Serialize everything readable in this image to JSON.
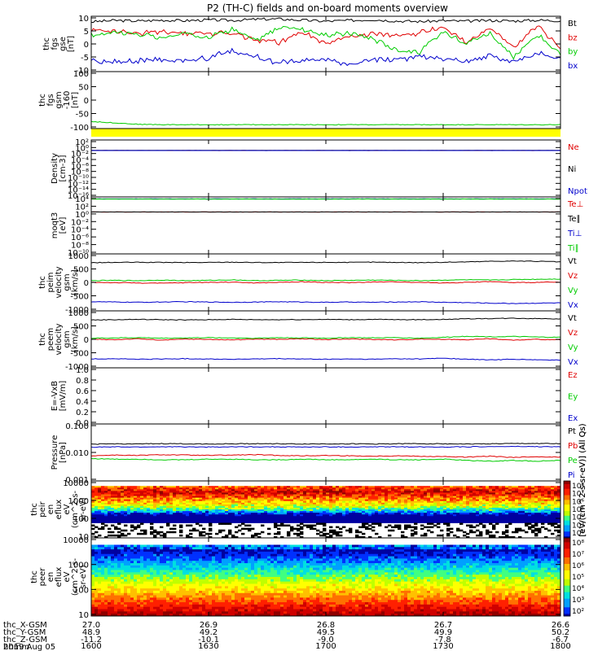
{
  "title": "P2 (TH-C) fields and on-board moments overview",
  "colors": {
    "black": "#000000",
    "red": "#e00000",
    "green": "#00cc00",
    "blue": "#0000cc",
    "yellow": "#ffff00"
  },
  "chart_data": [
    {
      "type": "line",
      "panel_label": [
        "thc",
        "fgs",
        "gse",
        "[nT]"
      ],
      "ylim": [
        -10,
        10
      ],
      "yticks": [
        "10",
        "5",
        "0",
        "-5",
        "-10"
      ],
      "series": [
        {
          "name": "Bt",
          "color": "black",
          "values": [
            8,
            8.5,
            8.3,
            8.6,
            8.4,
            8.7,
            8.5,
            8.9,
            9,
            8.6,
            8.2,
            8.5,
            8.8,
            8.3,
            8.1,
            8.4,
            8.2,
            8.5,
            8.3,
            8.6,
            8.4
          ]
        },
        {
          "name": "bz",
          "color": "red",
          "values": [
            5,
            4.8,
            3.5,
            4.6,
            4,
            3.8,
            4.2,
            1.5,
            0.5,
            4.5,
            0,
            2.5,
            3.5,
            3,
            4,
            6,
            1,
            5.5,
            -1,
            6.5,
            -2
          ]
        },
        {
          "name": "by",
          "color": "green",
          "values": [
            3,
            4.5,
            3.5,
            2,
            3.8,
            2.5,
            5.5,
            1,
            6,
            5.5,
            3,
            4,
            2,
            -2,
            -3,
            4.5,
            0.5,
            4,
            -5,
            3.5,
            -4
          ]
        },
        {
          "name": "bx",
          "color": "blue",
          "values": [
            -6,
            -6.5,
            -6,
            -5.8,
            -6.2,
            -5,
            -2.5,
            -4.5,
            -7,
            -6,
            -5.5,
            -7.5,
            -6,
            -5.5,
            -4.8,
            -5.2,
            -6.2,
            -4.5,
            -6.3,
            -3.5,
            -5
          ]
        }
      ]
    },
    {
      "type": "line",
      "panel_label": [
        "thc",
        "fgs",
        "gsm",
        "-160",
        "[nT]"
      ],
      "ylim": [
        -125,
        125
      ],
      "yticks": [
        "100",
        "50",
        "0",
        "-50",
        "-100"
      ],
      "series": [
        {
          "name": "",
          "color": "green",
          "values": [
            -94,
            -100,
            -106,
            -108,
            -108,
            -108,
            -108,
            -108,
            -108,
            -108,
            -108,
            -108,
            -108,
            -108,
            -108,
            -108,
            -108,
            -108,
            -108,
            -108,
            -108
          ]
        }
      ]
    },
    {
      "type": "line",
      "panel_label": [
        "Density",
        "[cm-3]"
      ],
      "scale": "log",
      "ylim": [
        -16,
        3
      ],
      "yticks": [
        "10²",
        "10⁰",
        "10⁻²",
        "10⁻⁴",
        "10⁻⁶",
        "10⁻⁸",
        "10⁻¹⁰",
        "10⁻¹²",
        "10⁻¹⁴",
        "10⁻¹⁶"
      ],
      "series": [
        {
          "name": "Ne",
          "color": "red",
          "values": [
            0.3,
            0.3,
            0.3,
            0.3,
            0.3,
            0.3,
            0.3,
            0.3,
            0.3,
            0.3,
            0.3,
            0.3,
            0.3,
            0.3,
            0.3,
            0.3,
            0.3,
            0.3,
            0.3,
            0.3,
            0.3
          ]
        },
        {
          "name": "Ni",
          "color": "black",
          "values": [
            0.35,
            0.35,
            0.35,
            0.35,
            0.35,
            0.35,
            0.35,
            0.35,
            0.35,
            0.35,
            0.35,
            0.35,
            0.35,
            0.35,
            0.35,
            0.35,
            0.35,
            0.35,
            0.35,
            0.35,
            0.35
          ]
        },
        {
          "name": "Npot",
          "color": "blue",
          "values": [
            0.3,
            0.3,
            0.3,
            0.3,
            0.3,
            0.3,
            0.3,
            0.3,
            0.3,
            0.3,
            0.3,
            0.3,
            0.3,
            0.3,
            0.3,
            0.3,
            0.3,
            0.3,
            0.3,
            0.3,
            0.3
          ]
        }
      ]
    },
    {
      "type": "line",
      "panel_label": [
        "moqt3",
        "[eV]"
      ],
      "scale": "log",
      "ylim": [
        -10,
        4
      ],
      "yticks": [
        "10⁴",
        "10²",
        "10⁰",
        "10⁻²",
        "10⁻⁴",
        "10⁻⁶",
        "10⁻⁸",
        "10⁻¹⁰"
      ],
      "series": [
        {
          "name": "Te⊥",
          "color": "red",
          "values": [
            2,
            2,
            2,
            2,
            2,
            2,
            2,
            2,
            2,
            2,
            2,
            2,
            2,
            2,
            2,
            2,
            2,
            2,
            2,
            2,
            2
          ]
        },
        {
          "name": "Te∥",
          "color": "black",
          "values": [
            2,
            2,
            2,
            2,
            2,
            2,
            2,
            2,
            2,
            2,
            2,
            2,
            2,
            2,
            2,
            2,
            2,
            2,
            2,
            2,
            2
          ]
        },
        {
          "name": "Ti⊥",
          "color": "blue",
          "values": [
            3300,
            3300,
            3300,
            3300,
            3300,
            3300,
            3300,
            3300,
            3300,
            3300,
            3300,
            3300,
            3300,
            3300,
            3300,
            3300,
            3300,
            3300,
            3300,
            3300,
            3300
          ]
        },
        {
          "name": "Ti∥",
          "color": "green",
          "values": [
            3000,
            3000,
            3000,
            3000,
            3000,
            3000,
            3000,
            3000,
            3000,
            3000,
            3000,
            3000,
            3000,
            3000,
            3000,
            3000,
            3000,
            3000,
            3000,
            3000,
            3000
          ]
        }
      ]
    },
    {
      "type": "line",
      "panel_label": [
        "thc",
        "peim",
        "velocity",
        "gsm",
        "[km/s]"
      ],
      "ylim": [
        -1000,
        1000
      ],
      "yticks": [
        "1000",
        "500",
        "0",
        "-500",
        "-1000"
      ],
      "series": [
        {
          "name": "Vt",
          "color": "black",
          "values": [
            690,
            700,
            705,
            700,
            695,
            700,
            710,
            700,
            695,
            700,
            705,
            700,
            710,
            700,
            695,
            705,
            720,
            740,
            750,
            740,
            720
          ]
        },
        {
          "name": "Vz",
          "color": "red",
          "values": [
            0,
            -10,
            -20,
            -30,
            -10,
            0,
            10,
            -20,
            0,
            20,
            0,
            -10,
            10,
            20,
            0,
            -20,
            0,
            30,
            -10,
            0,
            10
          ]
        },
        {
          "name": "Vy",
          "color": "green",
          "values": [
            60,
            70,
            60,
            80,
            60,
            70,
            90,
            60,
            70,
            80,
            60,
            70,
            80,
            70,
            60,
            80,
            90,
            80,
            100,
            110,
            120
          ]
        },
        {
          "name": "Vx",
          "color": "blue",
          "values": [
            -680,
            -690,
            -700,
            -690,
            -680,
            -690,
            -700,
            -690,
            -680,
            -690,
            -700,
            -690,
            -700,
            -690,
            -680,
            -700,
            -710,
            -730,
            -740,
            -730,
            -720
          ]
        }
      ]
    },
    {
      "type": "line",
      "panel_label": [
        "thc",
        "peem",
        "velocity",
        "gsm",
        "[km/s]"
      ],
      "ylim": [
        -1000,
        1000
      ],
      "yticks": [
        "1000",
        "500",
        "0",
        "-500",
        "-1000"
      ],
      "series": [
        {
          "name": "Vt",
          "color": "black",
          "values": [
            680,
            690,
            700,
            690,
            680,
            690,
            700,
            690,
            690,
            695,
            700,
            690,
            700,
            690,
            690,
            700,
            720,
            730,
            740,
            730,
            720
          ]
        },
        {
          "name": "Vz",
          "color": "red",
          "values": [
            0,
            -10,
            20,
            -30,
            10,
            0,
            -20,
            10,
            0,
            20,
            -10,
            10,
            0,
            -20,
            10,
            0,
            -10,
            20,
            -30,
            0,
            -20
          ]
        },
        {
          "name": "Vy",
          "color": "green",
          "values": [
            40,
            50,
            60,
            40,
            50,
            60,
            50,
            40,
            60,
            50,
            40,
            60,
            50,
            60,
            40,
            70,
            110,
            90,
            100,
            80,
            70
          ]
        },
        {
          "name": "Vx",
          "color": "blue",
          "values": [
            -690,
            -680,
            -700,
            -690,
            -680,
            -690,
            -700,
            -690,
            -680,
            -690,
            -700,
            -690,
            -700,
            -680,
            -690,
            -660,
            -700,
            -720,
            -700,
            -720,
            -730
          ]
        }
      ]
    },
    {
      "type": "line",
      "panel_label": [
        "E=-VxB",
        "[mV/m]"
      ],
      "ylim": [
        0,
        1
      ],
      "yticks": [
        "1.0",
        "0.8",
        "0.6",
        "0.4",
        "0.2",
        "0.0"
      ],
      "series": [
        {
          "name": "Ez",
          "color": "red",
          "values": []
        },
        {
          "name": "Ey",
          "color": "green",
          "values": []
        },
        {
          "name": "Ex",
          "color": "blue",
          "values": []
        }
      ]
    },
    {
      "type": "line",
      "panel_label": [
        "Pressure",
        "[nPa]"
      ],
      "scale": "log",
      "ylim": [
        -3,
        0
      ],
      "yticks": [
        "0.100",
        "0.010",
        "0.001"
      ],
      "series": [
        {
          "name": "Pt",
          "color": "black",
          "values": [
            0.085,
            0.09,
            0.088,
            0.092,
            0.09,
            0.088,
            0.09,
            0.092,
            0.09,
            0.088,
            0.09,
            0.09,
            0.088,
            0.09,
            0.092,
            0.09,
            0.088,
            0.09,
            0.092,
            0.094,
            0.09
          ]
        },
        {
          "name": "Pb",
          "color": "red",
          "values": [
            0.021,
            0.023,
            0.022,
            0.024,
            0.023,
            0.022,
            0.023,
            0.024,
            0.022,
            0.021,
            0.022,
            0.021,
            0.02,
            0.021,
            0.02,
            0.019,
            0.018,
            0.02,
            0.017,
            0.019,
            0.018
          ]
        },
        {
          "name": "Pe",
          "color": "green",
          "values": [
            0.015,
            0.014,
            0.014,
            0.013,
            0.013,
            0.014,
            0.014,
            0.013,
            0.013,
            0.014,
            0.013,
            0.013,
            0.014,
            0.013,
            0.013,
            0.014,
            0.012,
            0.011,
            0.012,
            0.011,
            0.012
          ]
        },
        {
          "name": "Pi",
          "color": "blue",
          "values": [
            0.06,
            0.062,
            0.061,
            0.063,
            0.062,
            0.061,
            0.062,
            0.063,
            0.062,
            0.061,
            0.062,
            0.061,
            0.062,
            0.063,
            0.062,
            0.061,
            0.063,
            0.064,
            0.065,
            0.064,
            0.063
          ]
        }
      ]
    },
    {
      "type": "heatmap",
      "panel_label": [
        "thc",
        "peir",
        "en",
        "eflux",
        "eV",
        "(cm^2-s-",
        "sr-eV)"
      ],
      "scale": "log",
      "ylim": [
        5,
        20000
      ],
      "yticks": [
        "10000",
        "1000",
        "100",
        "10"
      ],
      "colorbar": {
        "min_exp": 2,
        "max_exp": 8,
        "ticks": [
          "10⁸",
          "10⁷",
          "10⁶",
          "10⁵",
          "10⁴",
          "10³",
          "10²"
        ],
        "label": "[eV/(cm^2-s-sr-eV)] (All Qs)"
      }
    },
    {
      "type": "heatmap",
      "panel_label": [
        "thc",
        "peer",
        "en",
        "eflux",
        "eV",
        "(cm^2-s-",
        "sr-eV)"
      ],
      "scale": "log",
      "ylim": [
        5,
        20000
      ],
      "yticks": [
        "10000",
        "1000",
        "100",
        "10"
      ],
      "colorbar": {
        "min_exp": 2,
        "max_exp": 8,
        "ticks": [
          "10⁸",
          "10⁷",
          "10⁶",
          "10⁵",
          "10⁴",
          "10³",
          "10²"
        ],
        "label": "[eV/(cm^2-s-sr-eV)] (All Qs)"
      }
    }
  ],
  "x_axis": {
    "row_labels": [
      "thc_X-GSM",
      "thc_Y-GSM",
      "thc_Z-GSM",
      "hhmm",
      "2019 Aug 05"
    ],
    "columns": [
      [
        "27.0",
        "48.9",
        "-11.2",
        "1600"
      ],
      [
        "26.9",
        "49.2",
        "-10.1",
        "1630"
      ],
      [
        "26.8",
        "49.5",
        "-9.0",
        "1700"
      ],
      [
        "26.7",
        "49.9",
        "-7.8",
        "1730"
      ],
      [
        "26.6",
        "50.2",
        "-6.7",
        "1800"
      ]
    ]
  }
}
